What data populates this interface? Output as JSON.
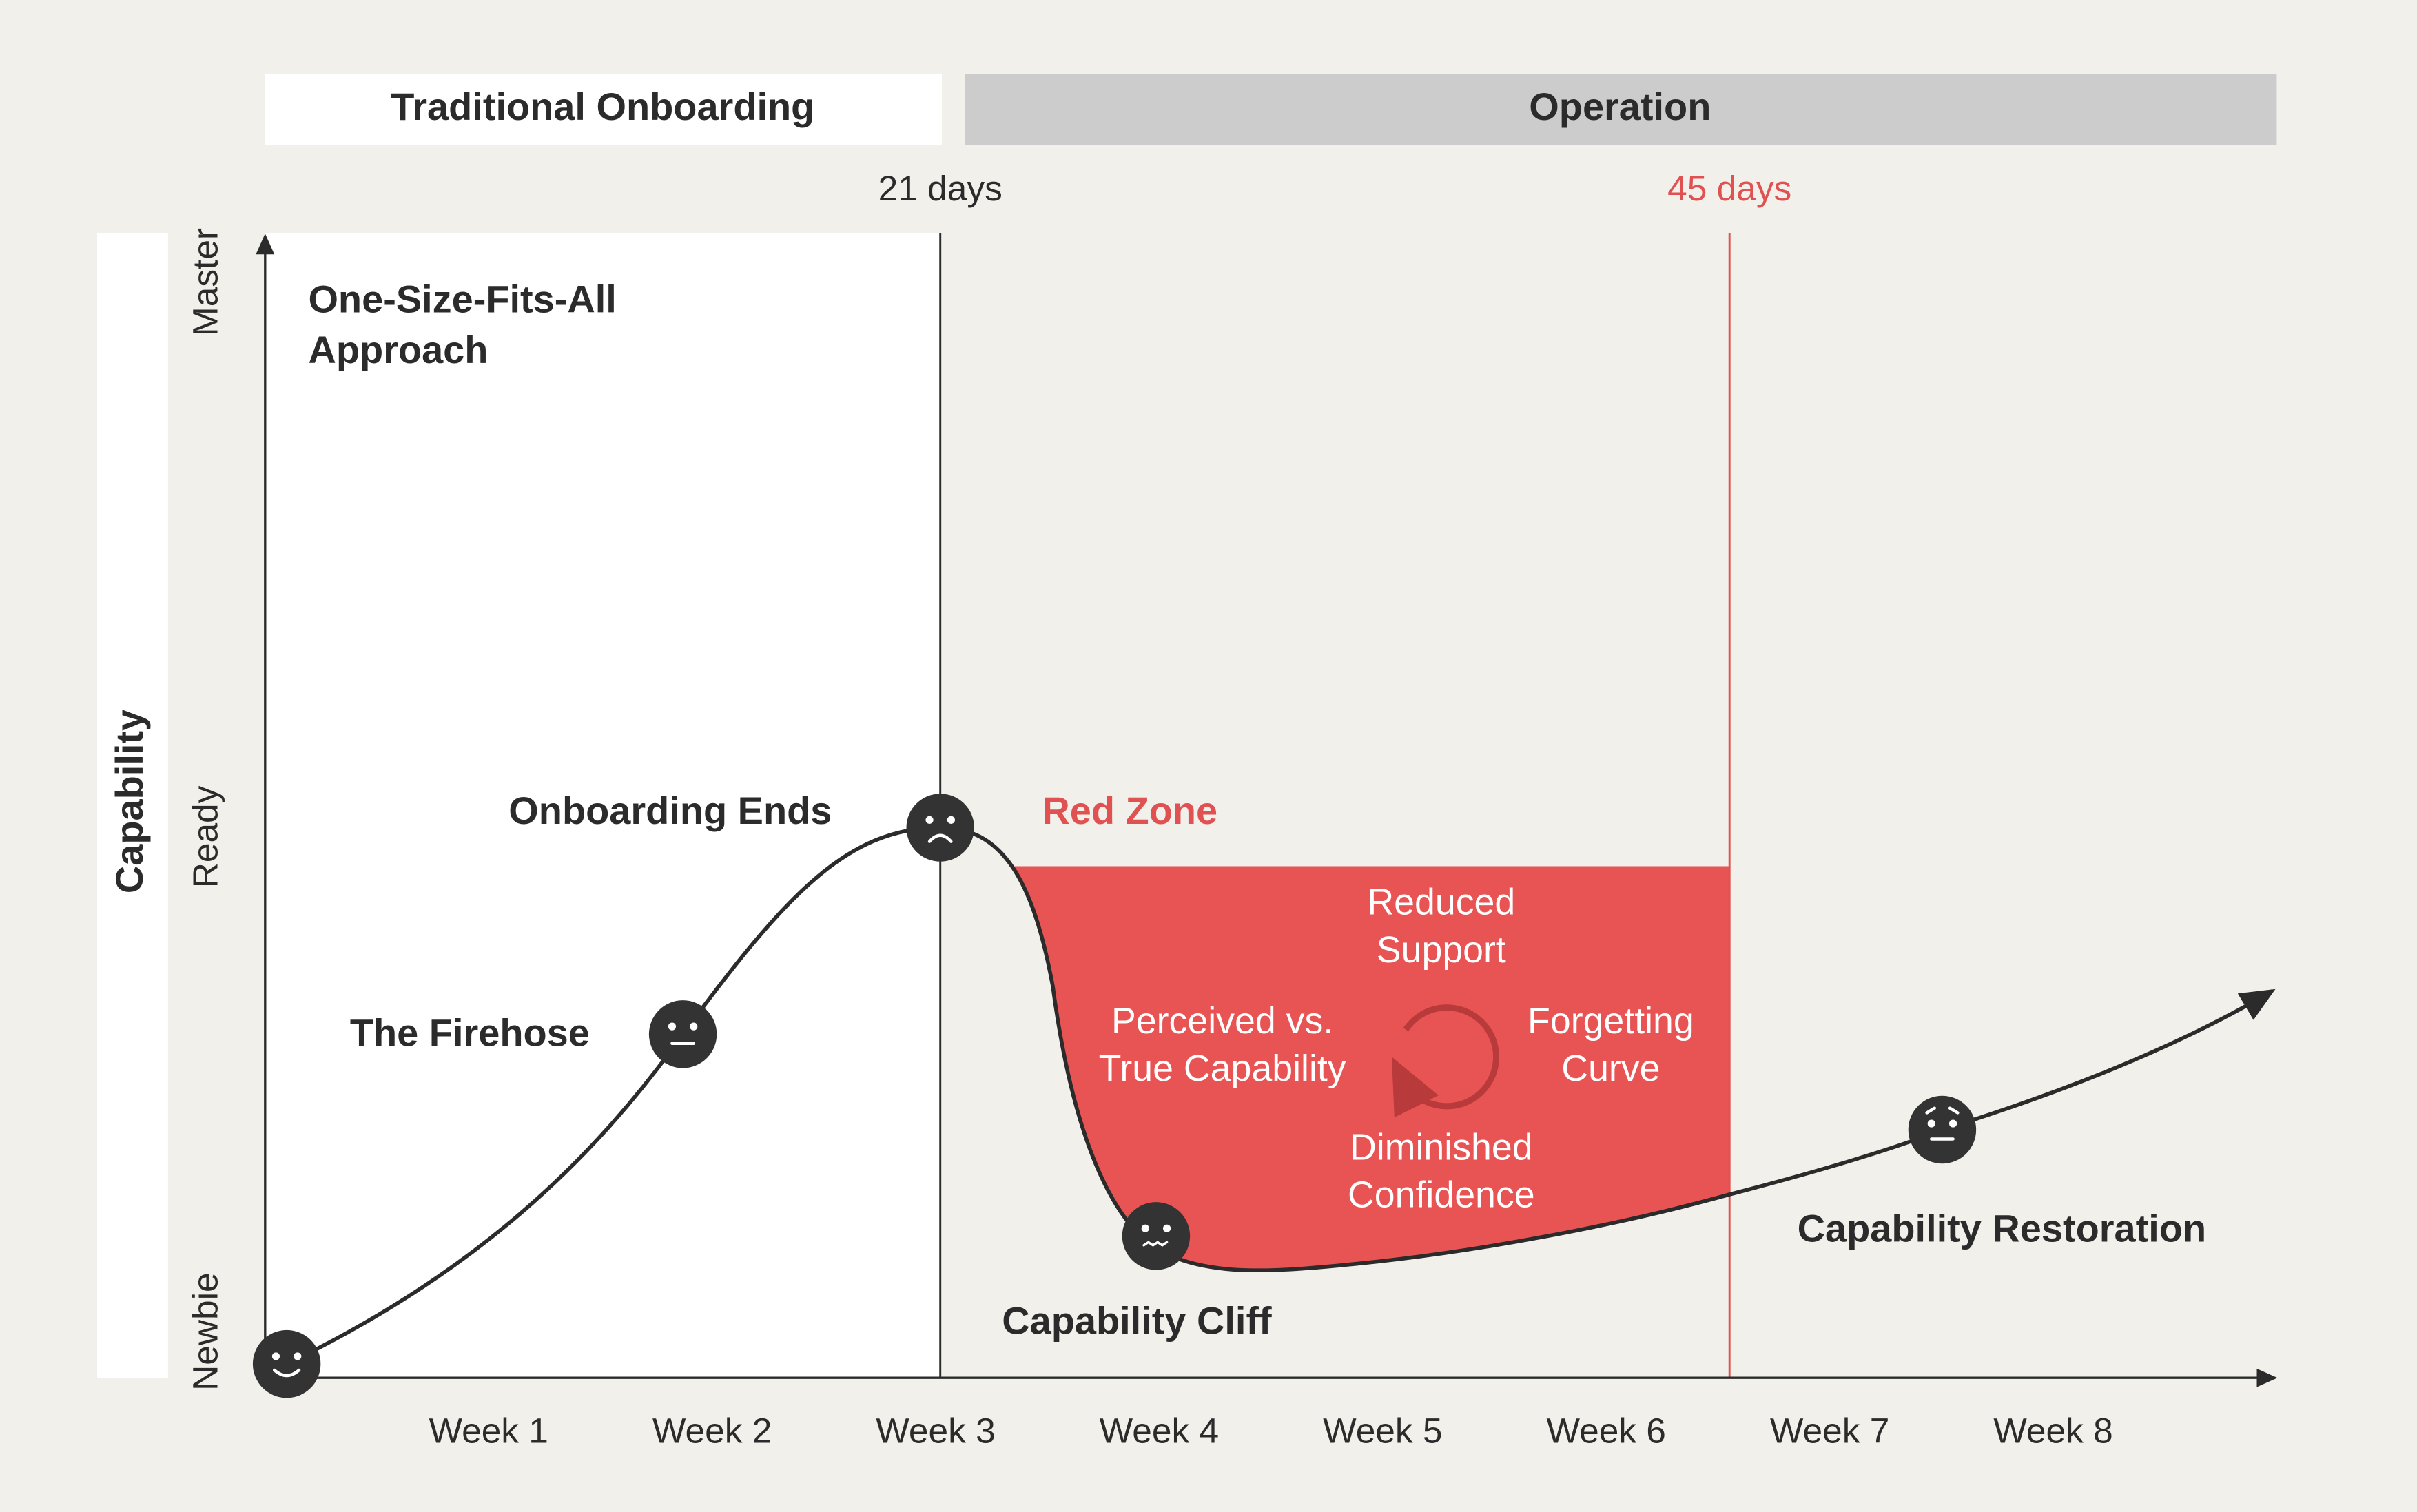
{
  "phases": {
    "onboarding": "Traditional Onboarding",
    "operation": "Operation"
  },
  "milestones": {
    "end_onboarding": "21 days",
    "end_red_zone": "45 days"
  },
  "y_axis": {
    "title": "Capability",
    "levels": [
      "Newbie",
      "Ready",
      "Master"
    ]
  },
  "x_axis": {
    "labels": [
      "Week 1",
      "Week 2",
      "Week 3",
      "Week 4",
      "Week 5",
      "Week 6",
      "Week 7",
      "Week 8"
    ]
  },
  "annotations": {
    "approach": [
      "One-Size-Fits-All",
      "Approach"
    ],
    "firehose": "The Firehose",
    "onboarding_ends": "Onboarding Ends",
    "red_zone": "Red Zone",
    "cliff": "Capability Cliff",
    "restoration": "Capability Restoration"
  },
  "red_zone_factors": {
    "reduced_support": [
      "Reduced",
      "Support"
    ],
    "perceived": [
      "Perceived vs.",
      "True Capability"
    ],
    "forgetting": [
      "Forgetting",
      "Curve"
    ],
    "confidence": [
      "Diminished",
      "Confidence"
    ]
  }
}
